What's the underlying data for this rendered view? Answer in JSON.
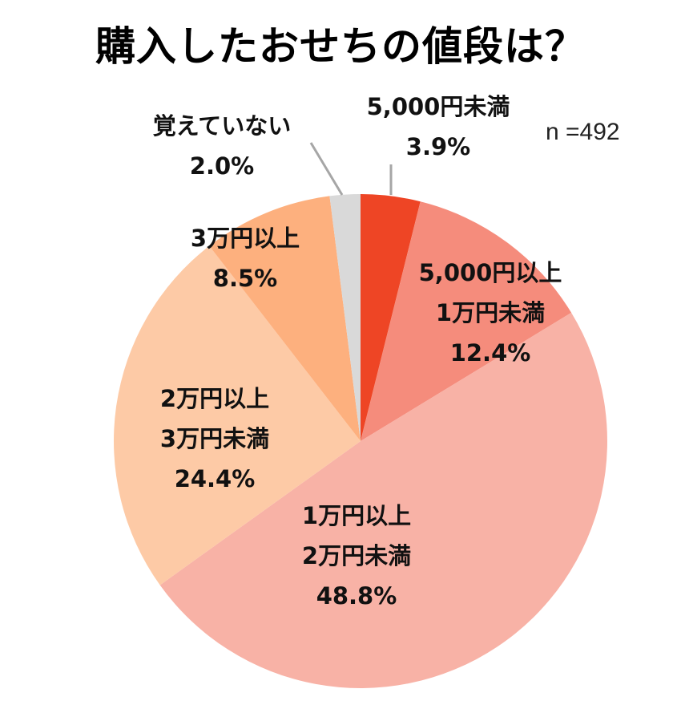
{
  "title": "購入したおせちの値段は？",
  "sample_size": "n =492",
  "chart_data": {
    "type": "pie",
    "title": "購入したおせちの値段は？",
    "note": "n =492",
    "start_angle": "12 o'clock, clockwise",
    "slices": [
      {
        "label": "5,000円未満",
        "value": 3.9,
        "display": "3.9%",
        "color": "#EE4525"
      },
      {
        "label": "5,000円以上1万円未満",
        "value": 12.4,
        "display": "12.4%",
        "color": "#F58C7C"
      },
      {
        "label": "1万円以上2万円未満",
        "value": 48.8,
        "display": "48.8%",
        "color": "#F8B2A6"
      },
      {
        "label": "2万円以上3万円未満",
        "value": 24.4,
        "display": "24.4%",
        "color": "#FDCAA6"
      },
      {
        "label": "3万円以上",
        "value": 8.5,
        "display": "8.5%",
        "color": "#FDB07E"
      },
      {
        "label": "覚えていない",
        "value": 2.0,
        "display": "2.0%",
        "color": "#D9D9D9"
      }
    ]
  },
  "labels": {
    "s0": {
      "line1": "5,000円未満",
      "pct": "3.9%"
    },
    "s1": {
      "line1": "5,000円以上",
      "line2": "1万円未満",
      "pct": "12.4%"
    },
    "s2": {
      "line1": "1万円以上",
      "line2": "2万円未満",
      "pct": "48.8%"
    },
    "s3": {
      "line1": "2万円以上",
      "line2": "3万円未満",
      "pct": "24.4%"
    },
    "s4": {
      "line1": "3万円以上",
      "pct": "8.5%"
    },
    "s5": {
      "line1": "覚えていない",
      "pct": "2.0%"
    }
  }
}
